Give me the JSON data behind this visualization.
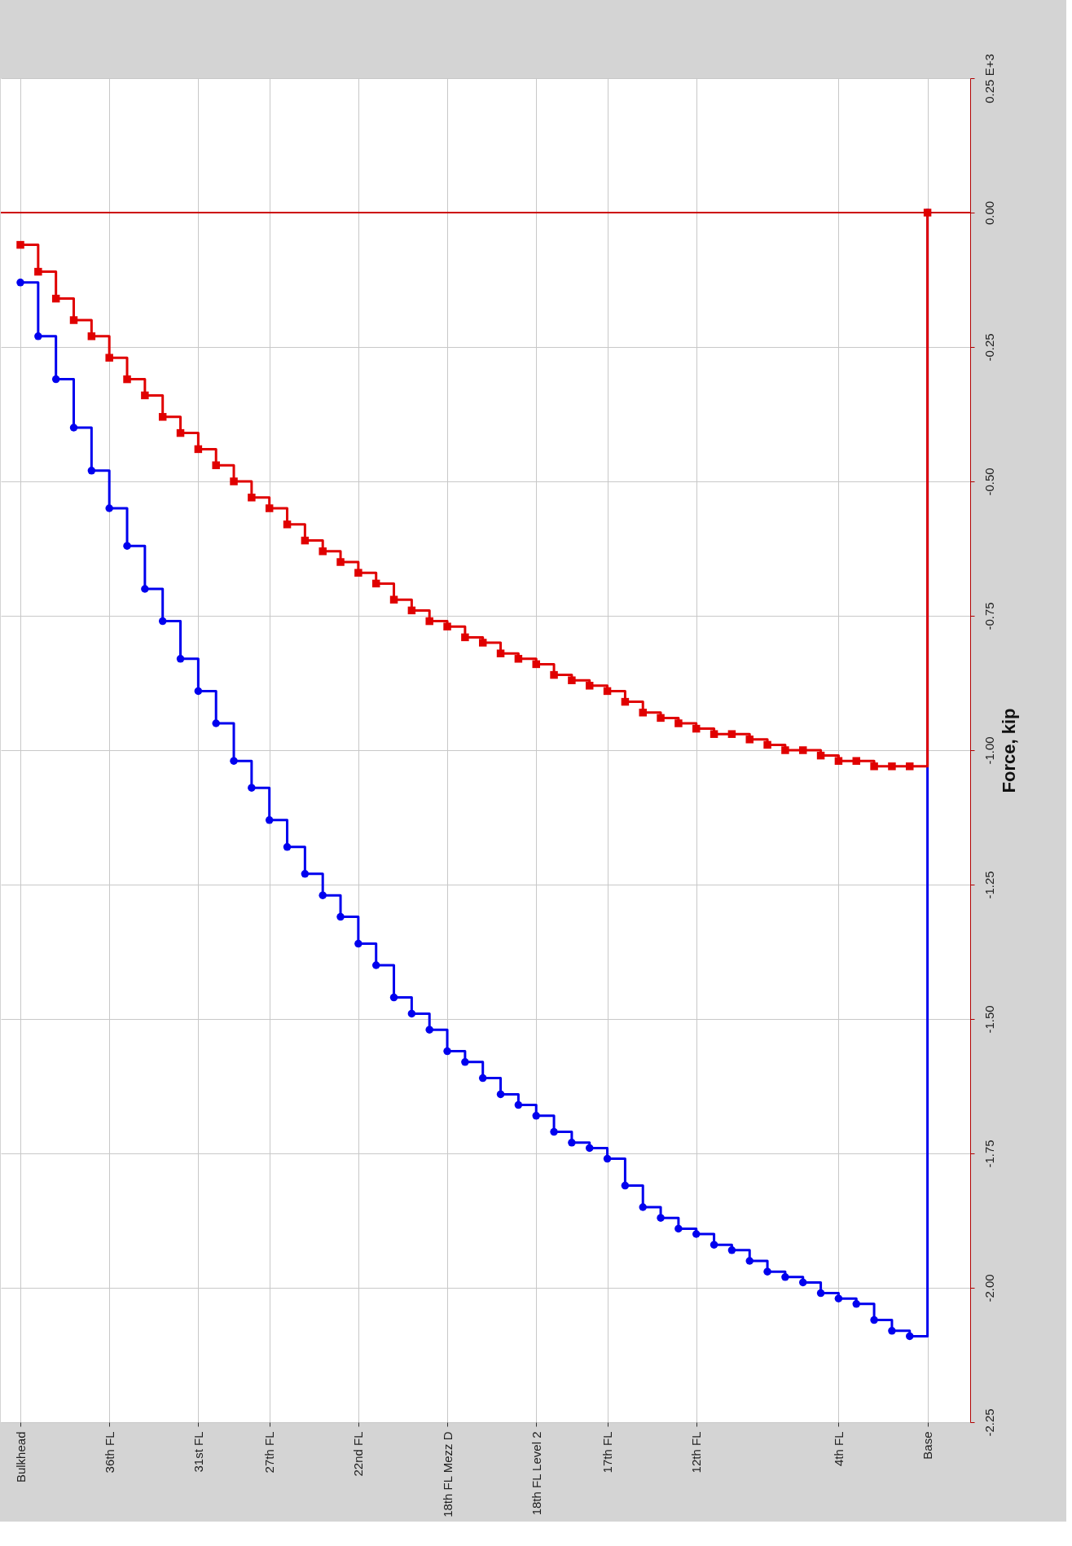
{
  "chart_data": {
    "type": "step",
    "ylabel": "Force, kip",
    "grid": true,
    "categories": [
      "Bulkhead",
      null,
      null,
      null,
      null,
      "36th FL",
      null,
      null,
      null,
      null,
      "31st FL",
      null,
      null,
      null,
      "27th FL",
      null,
      null,
      null,
      null,
      "22nd FL",
      null,
      null,
      null,
      null,
      "18th FL Mezz D",
      null,
      null,
      null,
      null,
      "18th FL Level 2",
      null,
      null,
      null,
      "17th FL",
      null,
      null,
      null,
      null,
      "12th FL",
      null,
      null,
      null,
      null,
      null,
      null,
      null,
      "4th FL",
      null,
      null,
      null,
      null,
      "Base"
    ],
    "ylim": [
      -2.25,
      0.25
    ],
    "yticks": [
      {
        "value": -2.25,
        "label": "-2.25"
      },
      {
        "value": -2,
        "label": "-2.00"
      },
      {
        "value": -1.75,
        "label": "-1.75"
      },
      {
        "value": -1.5,
        "label": "-1.50"
      },
      {
        "value": -1.25,
        "label": "-1.25"
      },
      {
        "value": -1,
        "label": "-1.00"
      },
      {
        "value": -0.75,
        "label": "-0.75"
      },
      {
        "value": -0.5,
        "label": "-0.50"
      },
      {
        "value": -0.25,
        "label": "-0.25"
      },
      {
        "value": 0,
        "label": "0.00"
      },
      {
        "value": 0.25,
        "label": "0.25 E+3"
      }
    ],
    "ref_lines": [
      {
        "axis": "y",
        "value": 0,
        "color": "#cc0000"
      }
    ],
    "series": [
      {
        "color": "#0000ee",
        "marker": "circle",
        "values": [
          -0.13,
          -0.23,
          -0.31,
          -0.4,
          -0.48,
          -0.55,
          -0.62,
          -0.7,
          -0.76,
          -0.83,
          -0.89,
          -0.95,
          -1.02,
          -1.07,
          -1.13,
          -1.18,
          -1.23,
          -1.27,
          -1.31,
          -1.36,
          -1.4,
          -1.46,
          -1.49,
          -1.52,
          -1.56,
          -1.58,
          -1.61,
          -1.64,
          -1.66,
          -1.68,
          -1.71,
          -1.73,
          -1.74,
          -1.76,
          -1.81,
          -1.85,
          -1.87,
          -1.89,
          -1.9,
          -1.92,
          -1.93,
          -1.95,
          -1.97,
          -1.98,
          -1.99,
          -2.01,
          -2.02,
          -2.03,
          -2.06,
          -2.08,
          -2.09,
          0
        ]
      },
      {
        "color": "#e00000",
        "marker": "square",
        "values": [
          -0.06,
          -0.11,
          -0.16,
          -0.2,
          -0.23,
          -0.27,
          -0.31,
          -0.34,
          -0.38,
          -0.41,
          -0.44,
          -0.47,
          -0.5,
          -0.53,
          -0.55,
          -0.58,
          -0.61,
          -0.63,
          -0.65,
          -0.67,
          -0.69,
          -0.72,
          -0.74,
          -0.76,
          -0.77,
          -0.79,
          -0.8,
          -0.82,
          -0.83,
          -0.84,
          -0.86,
          -0.87,
          -0.88,
          -0.89,
          -0.91,
          -0.93,
          -0.94,
          -0.95,
          -0.96,
          -0.97,
          -0.97,
          -0.98,
          -0.99,
          -1.0,
          -1.0,
          -1.01,
          -1.02,
          -1.02,
          -1.03,
          -1.03,
          -1.03,
          0
        ]
      }
    ]
  }
}
